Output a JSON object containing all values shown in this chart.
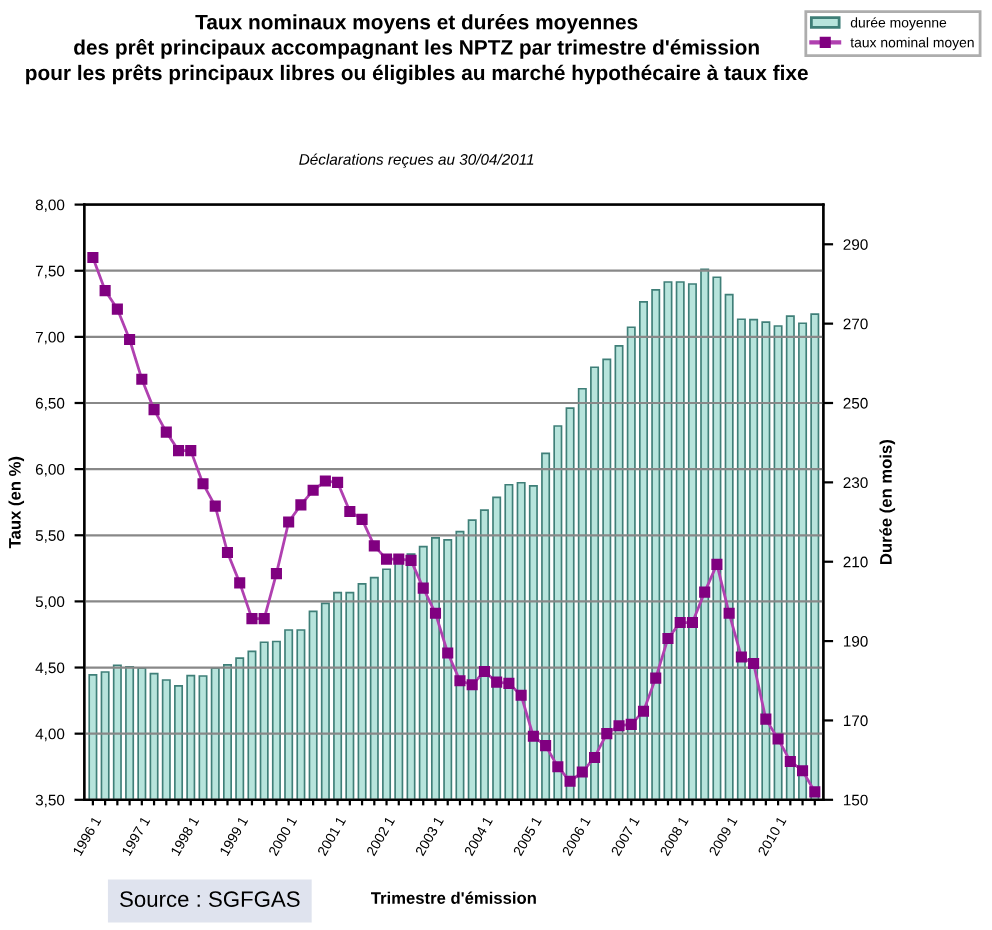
{
  "chart_data": {
    "type": "bar",
    "title": "Taux nominaux moyens et durées moyennes\ndes prêt principaux accompagnant les NPTZ par trimestre d'émission\npour les prêts principaux libres ou éligibles au marché hypothécaire à taux fixe",
    "subtitle": "Déclarations reçues au 30/04/2011",
    "xlabel": "Trimestre d'émission",
    "ylabel": "Taux (en %)",
    "y2label": "Durée (en mois)",
    "annotations": [
      "Source : SGFGAS"
    ],
    "categories": [
      "1996 1",
      null,
      null,
      null,
      "1997 1",
      null,
      null,
      null,
      "1998 1",
      null,
      null,
      null,
      "1999 1",
      null,
      null,
      null,
      "2000 1",
      null,
      null,
      null,
      "2001 1",
      null,
      null,
      null,
      "2002 1",
      null,
      null,
      null,
      "2003 1",
      null,
      null,
      null,
      "2004 1",
      null,
      null,
      null,
      "2005 1",
      null,
      null,
      null,
      "2006 1",
      null,
      null,
      null,
      "2007 1",
      null,
      null,
      null,
      "2008 1",
      null,
      null,
      null,
      "2009 1",
      null,
      null,
      null,
      "2010 1",
      null,
      null,
      null
    ],
    "series": [
      {
        "name": "durée moyenne",
        "axis": "y2",
        "color": "#b7e4dc",
        "values": [
          181.5,
          182.2,
          183.9,
          183.5,
          183.2,
          181.8,
          180.2,
          178.7,
          181.3,
          181.2,
          183.2,
          184.0,
          185.7,
          187.4,
          189.7,
          189.9,
          192.8,
          192.8,
          197.5,
          199.5,
          202.2,
          202.2,
          204.4,
          206.0,
          208.1,
          210.1,
          211.9,
          213.8,
          216.0,
          215.5,
          217.6,
          220.5,
          223.0,
          226.2,
          229.4,
          229.9,
          229.1,
          237.3,
          244.2,
          248.7,
          253.6,
          259.0,
          261.0,
          264.4,
          269.1,
          275.5,
          278.5,
          280.5,
          280.5,
          280.0,
          283.7,
          281.7,
          277.3,
          271.1,
          271.0,
          270.4,
          269.4,
          271.9,
          270.1,
          272.4
        ]
      },
      {
        "name": "taux nominal moyen",
        "type": "line",
        "axis": "y",
        "color": "#b040b0",
        "marker": "square",
        "values": [
          7.6,
          7.35,
          7.21,
          6.98,
          6.68,
          6.45,
          6.28,
          6.14,
          6.14,
          5.89,
          5.72,
          5.37,
          5.14,
          4.87,
          4.87,
          5.21,
          5.6,
          5.73,
          5.84,
          5.91,
          5.9,
          5.68,
          5.62,
          5.42,
          5.32,
          5.32,
          5.31,
          5.1,
          4.91,
          4.61,
          4.4,
          4.37,
          4.47,
          4.39,
          4.38,
          4.29,
          3.98,
          3.91,
          3.75,
          3.64,
          3.71,
          3.82,
          4.0,
          4.06,
          4.07,
          4.17,
          4.42,
          4.72,
          4.84,
          4.84,
          5.07,
          5.28,
          4.91,
          4.58,
          4.53,
          4.11,
          3.96,
          3.79,
          3.72,
          3.56
        ]
      }
    ],
    "ylim": [
      3.5,
      8.0
    ],
    "yticks": [
      {
        "value": 3.5,
        "label": "3,50"
      },
      {
        "value": 4.0,
        "label": "4,00"
      },
      {
        "value": 4.5,
        "label": "4,50"
      },
      {
        "value": 5.0,
        "label": "5,00"
      },
      {
        "value": 5.5,
        "label": "5,50"
      },
      {
        "value": 6.0,
        "label": "6,00"
      },
      {
        "value": 6.5,
        "label": "6,50"
      },
      {
        "value": 7.0,
        "label": "7,00"
      },
      {
        "value": 7.5,
        "label": "7,50"
      },
      {
        "value": 8.0,
        "label": "8,00"
      }
    ],
    "y2lim": [
      150,
      300
    ],
    "y2ticks": [
      150,
      170,
      190,
      210,
      230,
      250,
      270,
      290
    ],
    "grid": "y",
    "legend": "top right"
  }
}
